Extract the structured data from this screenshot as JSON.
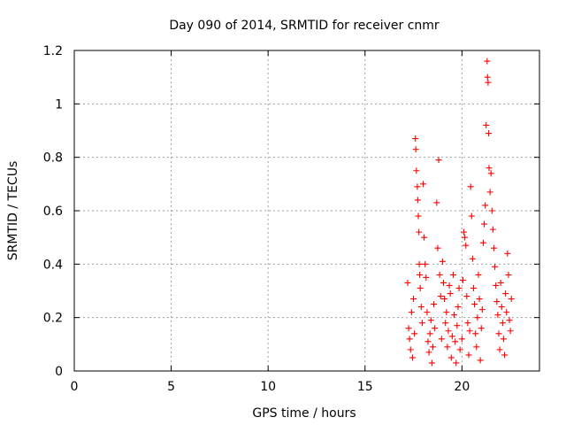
{
  "chart_data": {
    "type": "scatter",
    "title": "Day 090 of 2014, SRMTID for receiver cnmr",
    "xlabel": "GPS time / hours",
    "ylabel": "SRMTID / TECUs",
    "xlim": [
      0,
      24
    ],
    "ylim": [
      0,
      1.2
    ],
    "xticks": [
      0,
      5,
      10,
      15,
      20
    ],
    "xtick_labels": [
      "0",
      "5",
      "10",
      "15",
      "20"
    ],
    "yticks": [
      0,
      0.2,
      0.4,
      0.6,
      0.8,
      1.0,
      1.2
    ],
    "ytick_labels": [
      "0",
      "0.2",
      "0.4",
      "0.6",
      "0.8",
      "1",
      "1.2"
    ],
    "grid": true,
    "marker": "plus",
    "color": "#ff0000",
    "series": [
      {
        "name": "SRMTID",
        "points": [
          [
            17.2,
            0.33
          ],
          [
            17.25,
            0.16
          ],
          [
            17.3,
            0.12
          ],
          [
            17.35,
            0.08
          ],
          [
            17.4,
            0.22
          ],
          [
            17.45,
            0.05
          ],
          [
            17.5,
            0.27
          ],
          [
            17.55,
            0.14
          ],
          [
            17.6,
            0.87
          ],
          [
            17.62,
            0.83
          ],
          [
            17.65,
            0.75
          ],
          [
            17.7,
            0.69
          ],
          [
            17.72,
            0.64
          ],
          [
            17.75,
            0.58
          ],
          [
            17.78,
            0.52
          ],
          [
            17.8,
            0.4
          ],
          [
            17.82,
            0.36
          ],
          [
            17.85,
            0.31
          ],
          [
            17.9,
            0.24
          ],
          [
            17.95,
            0.18
          ],
          [
            18.0,
            0.7
          ],
          [
            18.05,
            0.5
          ],
          [
            18.1,
            0.4
          ],
          [
            18.15,
            0.35
          ],
          [
            18.2,
            0.22
          ],
          [
            18.25,
            0.11
          ],
          [
            18.3,
            0.07
          ],
          [
            18.35,
            0.14
          ],
          [
            18.4,
            0.19
          ],
          [
            18.45,
            0.03
          ],
          [
            18.5,
            0.09
          ],
          [
            18.55,
            0.25
          ],
          [
            18.6,
            0.16
          ],
          [
            18.7,
            0.63
          ],
          [
            18.75,
            0.46
          ],
          [
            18.8,
            0.79
          ],
          [
            18.85,
            0.36
          ],
          [
            18.9,
            0.28
          ],
          [
            18.95,
            0.12
          ],
          [
            19.0,
            0.41
          ],
          [
            19.05,
            0.33
          ],
          [
            19.1,
            0.27
          ],
          [
            19.15,
            0.18
          ],
          [
            19.2,
            0.22
          ],
          [
            19.25,
            0.09
          ],
          [
            19.3,
            0.15
          ],
          [
            19.35,
            0.32
          ],
          [
            19.4,
            0.29
          ],
          [
            19.45,
            0.05
          ],
          [
            19.5,
            0.13
          ],
          [
            19.55,
            0.36
          ],
          [
            19.6,
            0.21
          ],
          [
            19.65,
            0.11
          ],
          [
            19.7,
            0.03
          ],
          [
            19.75,
            0.17
          ],
          [
            19.8,
            0.24
          ],
          [
            19.85,
            0.31
          ],
          [
            19.9,
            0.08
          ],
          [
            20.0,
            0.12
          ],
          [
            20.05,
            0.34
          ],
          [
            20.1,
            0.52
          ],
          [
            20.15,
            0.5
          ],
          [
            20.2,
            0.47
          ],
          [
            20.25,
            0.28
          ],
          [
            20.3,
            0.18
          ],
          [
            20.35,
            0.06
          ],
          [
            20.4,
            0.15
          ],
          [
            20.45,
            0.69
          ],
          [
            20.5,
            0.58
          ],
          [
            20.55,
            0.42
          ],
          [
            20.6,
            0.31
          ],
          [
            20.65,
            0.25
          ],
          [
            20.7,
            0.14
          ],
          [
            20.75,
            0.09
          ],
          [
            20.8,
            0.2
          ],
          [
            20.85,
            0.36
          ],
          [
            20.9,
            0.27
          ],
          [
            20.95,
            0.04
          ],
          [
            21.0,
            0.16
          ],
          [
            21.05,
            0.23
          ],
          [
            21.1,
            0.48
          ],
          [
            21.15,
            0.55
          ],
          [
            21.2,
            0.62
          ],
          [
            21.25,
            0.92
          ],
          [
            21.3,
            1.16
          ],
          [
            21.32,
            1.1
          ],
          [
            21.35,
            1.08
          ],
          [
            21.38,
            0.89
          ],
          [
            21.4,
            0.76
          ],
          [
            21.45,
            0.67
          ],
          [
            21.5,
            0.74
          ],
          [
            21.55,
            0.6
          ],
          [
            21.6,
            0.53
          ],
          [
            21.65,
            0.46
          ],
          [
            21.7,
            0.39
          ],
          [
            21.75,
            0.32
          ],
          [
            21.8,
            0.26
          ],
          [
            21.85,
            0.21
          ],
          [
            21.9,
            0.14
          ],
          [
            21.95,
            0.08
          ],
          [
            22.0,
            0.33
          ],
          [
            22.05,
            0.24
          ],
          [
            22.1,
            0.18
          ],
          [
            22.15,
            0.12
          ],
          [
            22.2,
            0.06
          ],
          [
            22.25,
            0.29
          ],
          [
            22.3,
            0.22
          ],
          [
            22.35,
            0.44
          ],
          [
            22.4,
            0.36
          ],
          [
            22.45,
            0.19
          ],
          [
            22.5,
            0.15
          ],
          [
            22.55,
            0.27
          ]
        ]
      }
    ]
  }
}
